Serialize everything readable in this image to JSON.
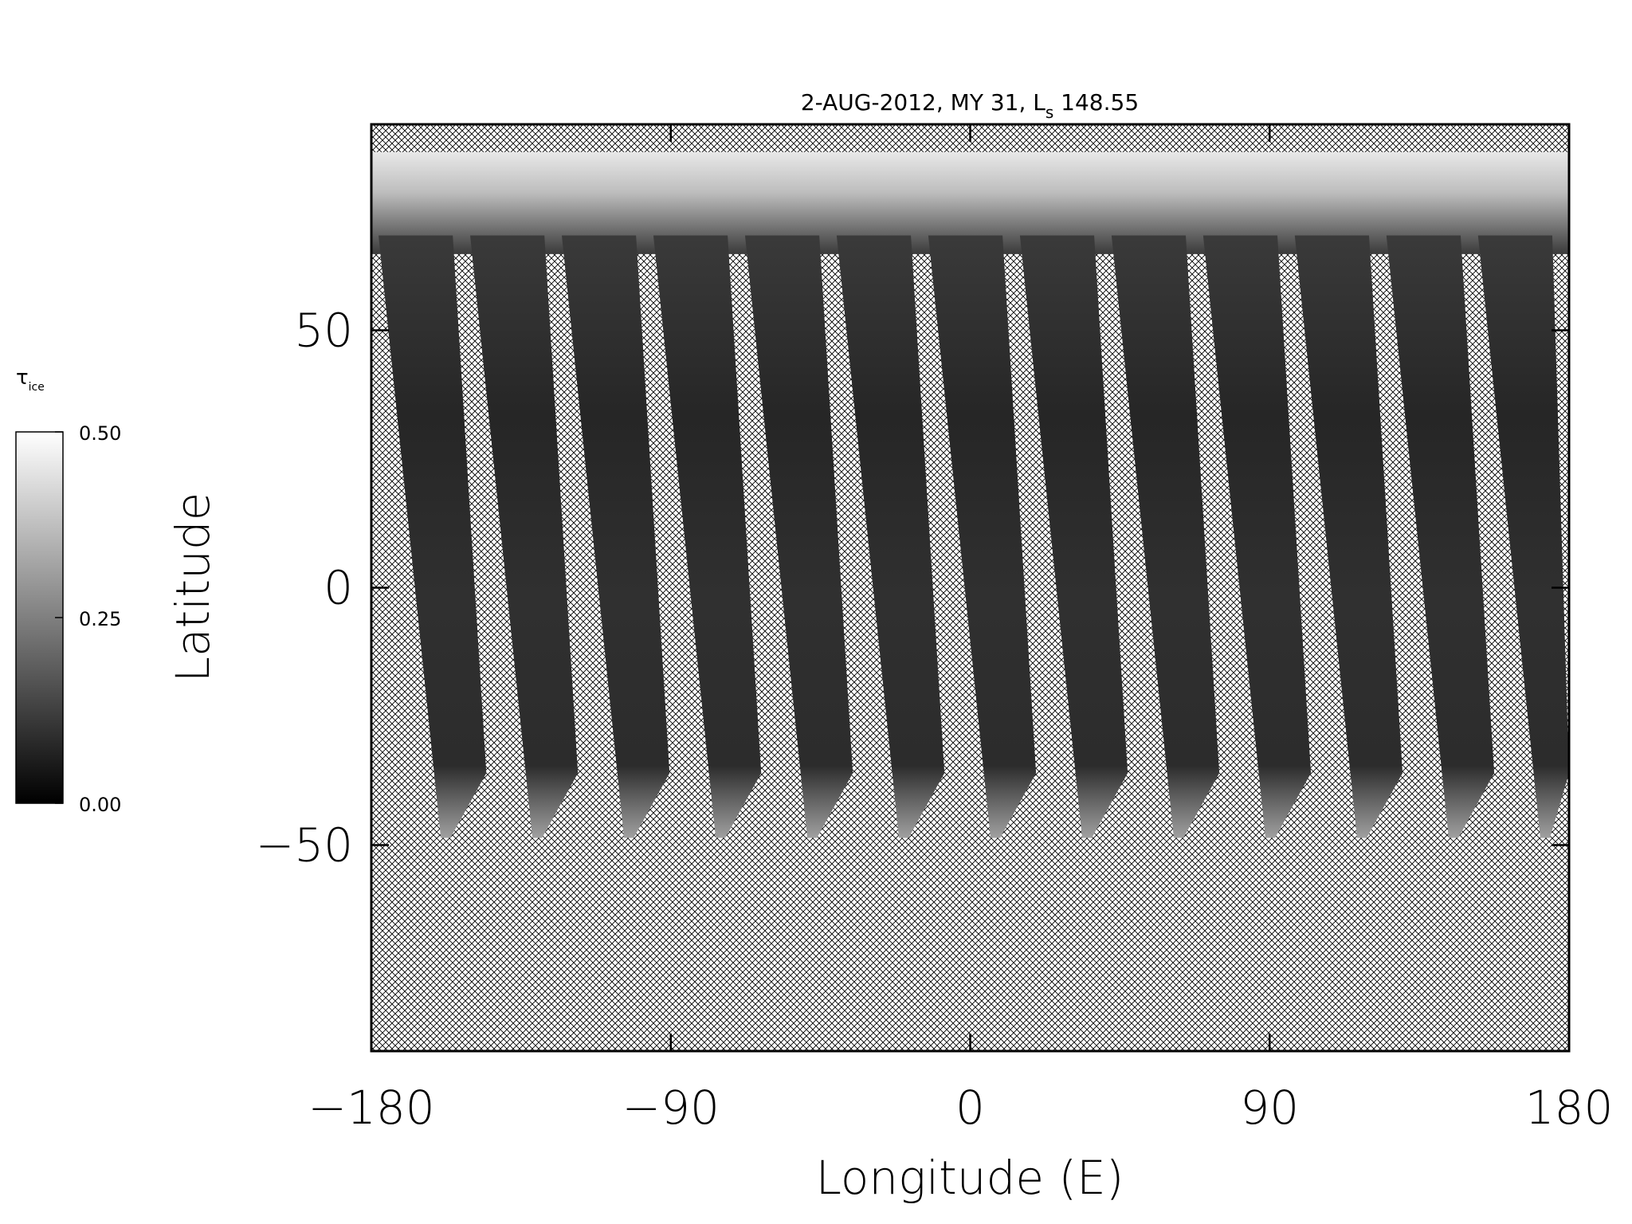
{
  "chart_data": {
    "type": "map",
    "title": {
      "main": "2-AUG-2012, MY 31,  L",
      "sub": "s",
      "tail": " 148.55"
    },
    "xlabel": "Longitude (E)",
    "ylabel": "Latitude",
    "xlim": [
      -180,
      180
    ],
    "ylim": [
      -90,
      90
    ],
    "xticks": [
      {
        "value": -180,
        "label": "−180"
      },
      {
        "value": -90,
        "label": "−90"
      },
      0,
      90,
      180
    ],
    "yticks": [
      {
        "value": -50,
        "label": "−50"
      },
      0,
      50
    ],
    "colorbar": {
      "label": {
        "main": "τ",
        "sub": "ice"
      },
      "lim": [
        0,
        0.5
      ],
      "ticks": [
        {
          "value": 0,
          "label": "0.00"
        },
        0.25,
        {
          "value": 0.5,
          "label": "0.50"
        }
      ],
      "colors": [
        "#000000",
        "#ffffff"
      ]
    }
  }
}
